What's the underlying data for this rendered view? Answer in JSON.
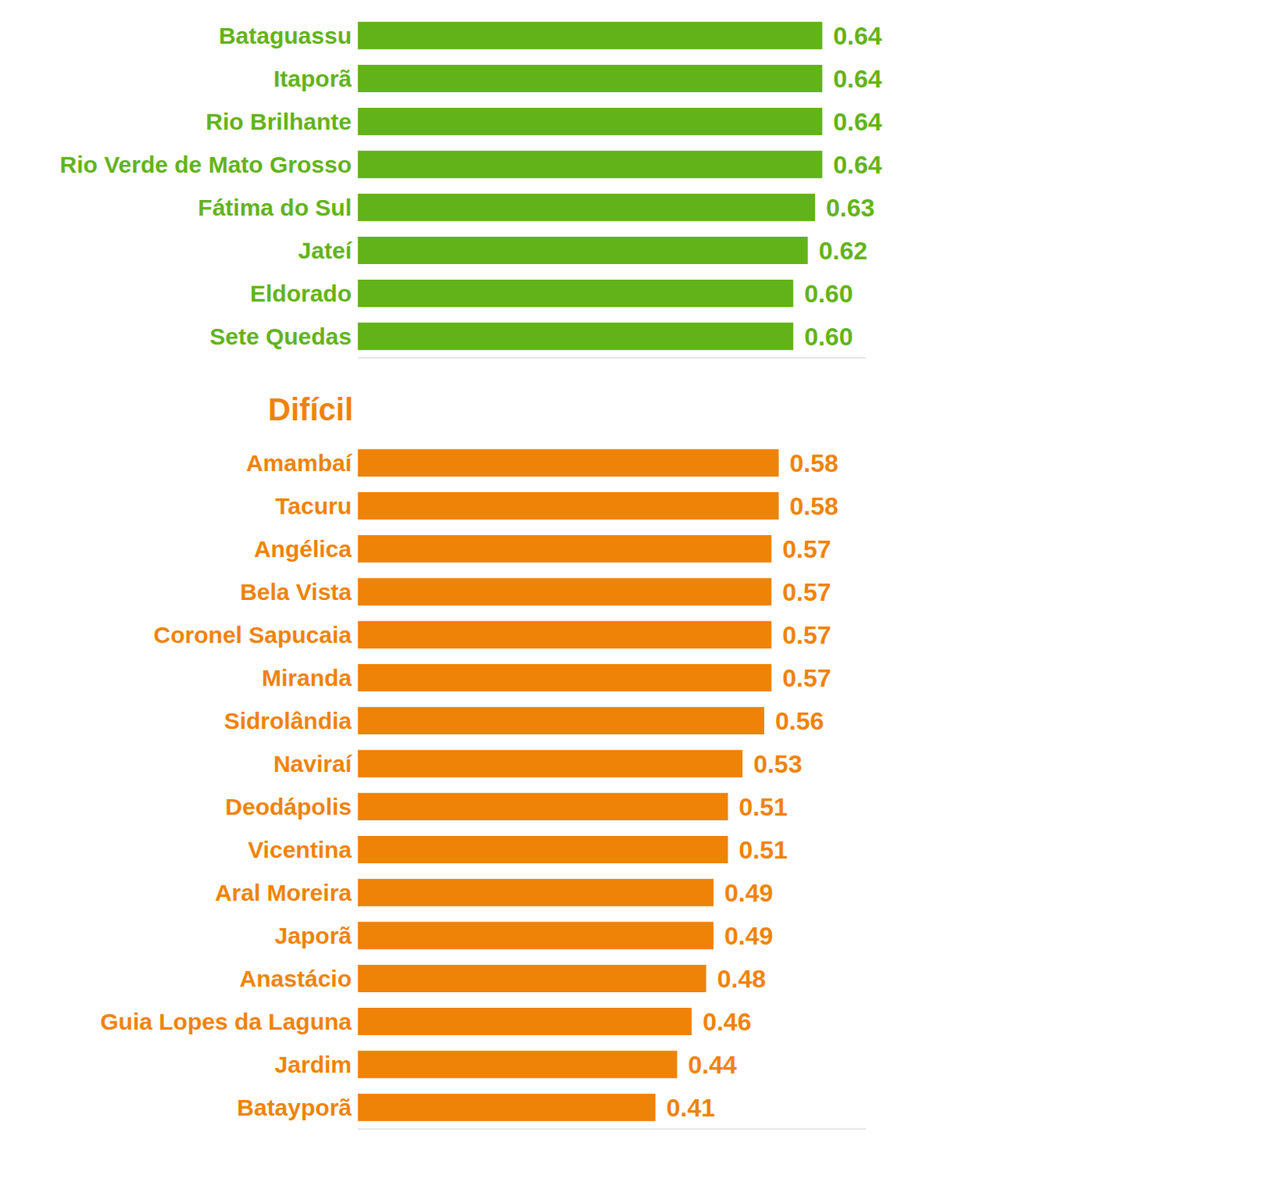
{
  "chart_data": [
    {
      "type": "bar",
      "orientation": "horizontal",
      "categories": [
        "Bataguassu",
        "Itaporã",
        "Rio Brilhante",
        "Rio Verde de Mato Grosso",
        "Fátima do Sul",
        "Jateí",
        "Eldorado",
        "Sete Quedas"
      ],
      "values": [
        0.64,
        0.64,
        0.64,
        0.64,
        0.63,
        0.62,
        0.6,
        0.6
      ],
      "value_labels": [
        "0.64",
        "0.64",
        "0.64",
        "0.64",
        "0.63",
        "0.62",
        "0.60",
        "0.60"
      ],
      "color": "#62b31a",
      "xlim": [
        0,
        0.7
      ],
      "xticks": [],
      "data_labels": true,
      "tick_labels": "y"
    },
    {
      "type": "bar",
      "orientation": "horizontal",
      "title": "Difícil",
      "categories": [
        "Amambaí",
        "Tacuru",
        "Angélica",
        "Bela Vista",
        "Coronel Sapucaia",
        "Miranda",
        "Sidrolândia",
        "Naviraí",
        "Deodápolis",
        "Vicentina",
        "Aral Moreira",
        "Japorã",
        "Anastácio",
        "Guia Lopes da Laguna",
        "Jardim",
        "Batayporã"
      ],
      "values": [
        0.58,
        0.58,
        0.57,
        0.57,
        0.57,
        0.57,
        0.56,
        0.53,
        0.51,
        0.51,
        0.49,
        0.49,
        0.48,
        0.46,
        0.44,
        0.41
      ],
      "value_labels": [
        "0.58",
        "0.58",
        "0.57",
        "0.57",
        "0.57",
        "0.57",
        "0.56",
        "0.53",
        "0.51",
        "0.51",
        "0.49",
        "0.49",
        "0.48",
        "0.46",
        "0.44",
        "0.41"
      ],
      "color": "#ef8307",
      "xlim": [
        0,
        0.7
      ],
      "xticks": [],
      "data_labels": true,
      "tick_labels": "y"
    }
  ]
}
